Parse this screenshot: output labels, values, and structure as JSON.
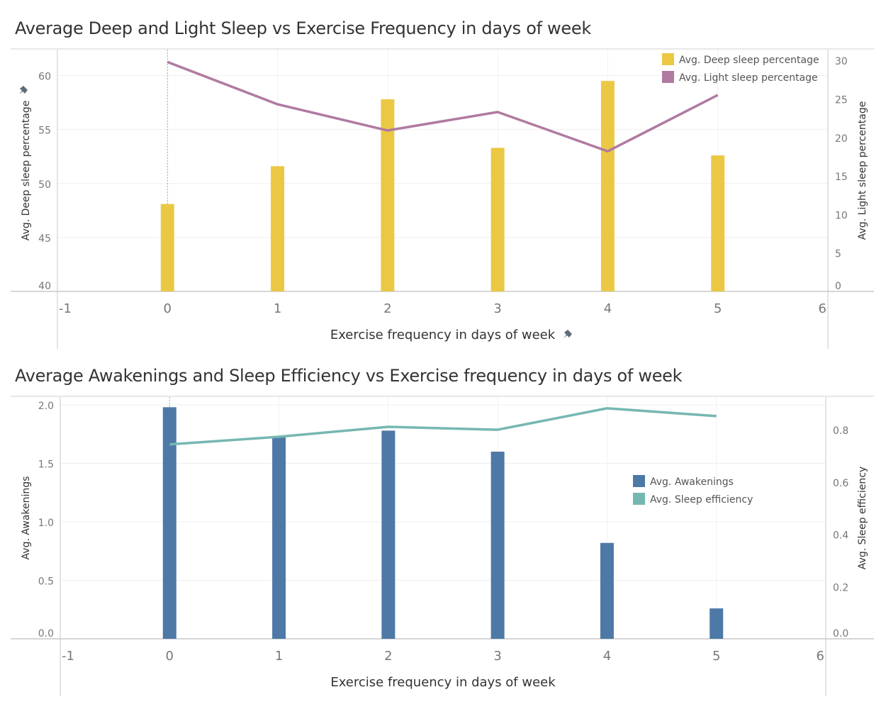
{
  "chart_data": [
    {
      "type": "bar+line",
      "title": "Average Deep and Light Sleep vs Exercise Frequency in days of week",
      "xlabel": "Exercise frequency in days of week",
      "ylabel_left": "Avg. Deep sleep percentage",
      "ylabel_right": "Avg. Light sleep percentage",
      "xlim": [
        -1,
        6
      ],
      "x_ticks": [
        "-1",
        "0",
        "1",
        "2",
        "3",
        "4",
        "5",
        "6"
      ],
      "ylim_left": [
        40,
        62.4
      ],
      "yticks_left": [
        "40",
        "45",
        "50",
        "55",
        "60"
      ],
      "ylim_right": [
        0,
        31.4
      ],
      "yticks_right": [
        "0",
        "5",
        "10",
        "15",
        "20",
        "25",
        "30"
      ],
      "grid": true,
      "legend_position": "top-right",
      "x": [
        0,
        1,
        2,
        3,
        4,
        5
      ],
      "series": [
        {
          "name": "Avg. Deep sleep percentage",
          "kind": "bar",
          "axis": "left",
          "color": "#ebc844",
          "values": [
            48.1,
            51.6,
            57.8,
            53.3,
            59.5,
            52.6
          ]
        },
        {
          "name": "Avg. Light sleep percentage",
          "kind": "line",
          "axis": "right",
          "color": "#b07aa1",
          "values": [
            29.8,
            24.3,
            20.9,
            23.3,
            18.2,
            25.5
          ]
        }
      ],
      "pinned_icons": true
    },
    {
      "type": "bar+line",
      "title": "Average Awakenings and Sleep Efficiency vs Exercise frequency in days of week",
      "xlabel": "Exercise frequency in days of week",
      "ylabel_left": "Avg. Awakenings",
      "ylabel_right": "Avg. Sleep efficiency",
      "xlim": [
        -1,
        6
      ],
      "x_ticks": [
        "-1",
        "0",
        "1",
        "2",
        "3",
        "4",
        "5",
        "6"
      ],
      "ylim_left": [
        0,
        2.067
      ],
      "yticks_left": [
        "0.0",
        "0.5",
        "1.0",
        "1.5",
        "2.0"
      ],
      "ylim_right": [
        0,
        0.925
      ],
      "yticks_right": [
        "0.0",
        "0.2",
        "0.4",
        "0.6",
        "0.8"
      ],
      "grid": true,
      "legend_position": "right",
      "x": [
        0,
        1,
        2,
        3,
        4,
        5
      ],
      "series": [
        {
          "name": "Avg. Awakenings",
          "kind": "bar",
          "axis": "left",
          "color": "#4e79a7",
          "values": [
            1.98,
            1.73,
            1.78,
            1.6,
            0.82,
            0.26
          ]
        },
        {
          "name": "Avg. Sleep efficiency",
          "kind": "line",
          "axis": "right",
          "color": "#76b7b2",
          "values": [
            0.744,
            0.773,
            0.811,
            0.8,
            0.882,
            0.852
          ]
        }
      ],
      "pinned_icons": false
    }
  ]
}
